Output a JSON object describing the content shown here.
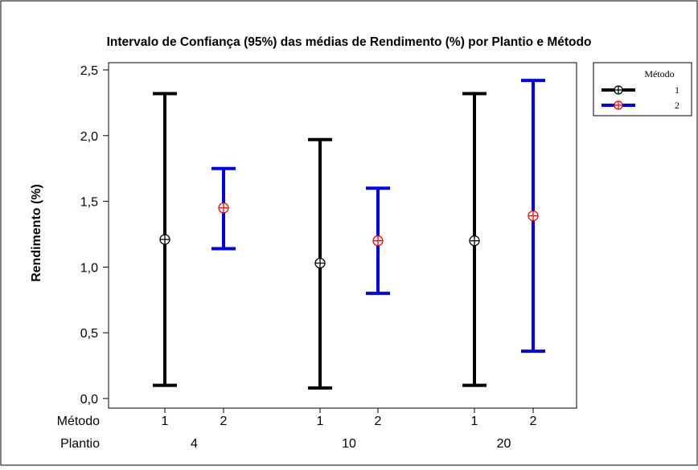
{
  "chart_data": {
    "type": "errorbar",
    "title": "Intervalo de Confiança (95%) das médias de Rendimento (%) por Plantio e  Método",
    "ylabel": "Rendimento (%)",
    "ylim": [
      0.0,
      2.5
    ],
    "yticks": [
      0.0,
      0.5,
      1.0,
      1.5,
      2.0,
      2.5
    ],
    "ytick_labels": [
      "0,0",
      "0,5",
      "1,0",
      "1,5",
      "2,0",
      "2,5"
    ],
    "grid": false,
    "legend": {
      "title": "Método",
      "placement": "outside-top-right"
    },
    "x_factors": [
      {
        "label": "Método",
        "levels": [
          "1",
          "2",
          "1",
          "2",
          "1",
          "2"
        ]
      },
      {
        "label": "Plantio",
        "levels": [
          "4",
          "10",
          "20"
        ]
      }
    ],
    "series": [
      {
        "name": "1",
        "color": "#000000",
        "marker_color": "#000000",
        "points": [
          {
            "plantio": "4",
            "mean": 1.21,
            "lower": 0.1,
            "upper": 2.32
          },
          {
            "plantio": "10",
            "mean": 1.03,
            "lower": 0.08,
            "upper": 1.97
          },
          {
            "plantio": "20",
            "mean": 1.2,
            "lower": 0.1,
            "upper": 2.32
          }
        ]
      },
      {
        "name": "2",
        "color": "#0000ff",
        "marker_color": "#ff0000",
        "points": [
          {
            "plantio": "4",
            "mean": 1.45,
            "lower": 1.14,
            "upper": 1.75
          },
          {
            "plantio": "10",
            "mean": 1.2,
            "lower": 0.8,
            "upper": 1.6
          },
          {
            "plantio": "20",
            "mean": 1.39,
            "lower": 0.36,
            "upper": 2.42
          }
        ]
      }
    ]
  }
}
